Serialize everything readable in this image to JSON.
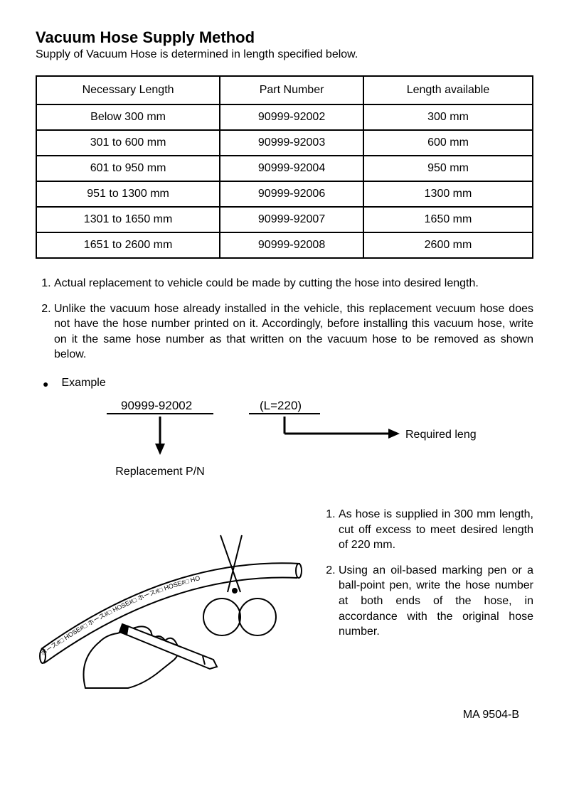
{
  "title": "Vacuum Hose Supply Method",
  "subtitle": "Supply of Vacuum Hose is determined in length specified below.",
  "table": {
    "columns": [
      "Necessary Length",
      "Part Number",
      "Length available"
    ],
    "rows": [
      [
        "Below 300 mm",
        "90999-92002",
        "300 mm"
      ],
      [
        "301 to 600 mm",
        "90999-92003",
        "600 mm"
      ],
      [
        "601 to 950 mm",
        "90999-92004",
        "950 mm"
      ],
      [
        "951 to 1300 mm",
        "90999-92006",
        "1300 mm"
      ],
      [
        "1301 to 1650 mm",
        "90999-92007",
        "1650 mm"
      ],
      [
        "1651 to 2600 mm",
        "90999-92008",
        "2600 mm"
      ]
    ],
    "border_color": "#000000",
    "border_width": 2
  },
  "notes": [
    "Actual replacement to vehicle could be made by cutting the hose into desired length.",
    "Unlike the vacuum hose already installed in the vehicle, this replacement vecuum hose does not have the hose number printed on it. Accordingly, before installing this vacuum hose, write on it the same hose number as that written on the vacuum hose to be removed as shown below."
  ],
  "example": {
    "bullet": "●",
    "label": "Example",
    "part_number": "90999-92002",
    "part_caption": "Replacement P/N",
    "length_code": "(L=220)",
    "length_caption": "Required length",
    "arrow_color": "#000000"
  },
  "illustration": {
    "hose_markings": "ホース#□ HOSE#□ ホース#□ HOSE#□ ホース#□ HOSE#□ HO",
    "steps": [
      "As hose is supplied in 300 mm length, cut off excess to meet desired length of 220 mm.",
      "Using an oil-based marking pen or a ball-point pen, write the hose number at both ends of the hose, in accordance with the original hose number."
    ],
    "stroke_color": "#000000",
    "background": "#ffffff"
  },
  "footer_code": "MA 9504-B",
  "colors": {
    "text": "#000000",
    "background": "#ffffff"
  }
}
